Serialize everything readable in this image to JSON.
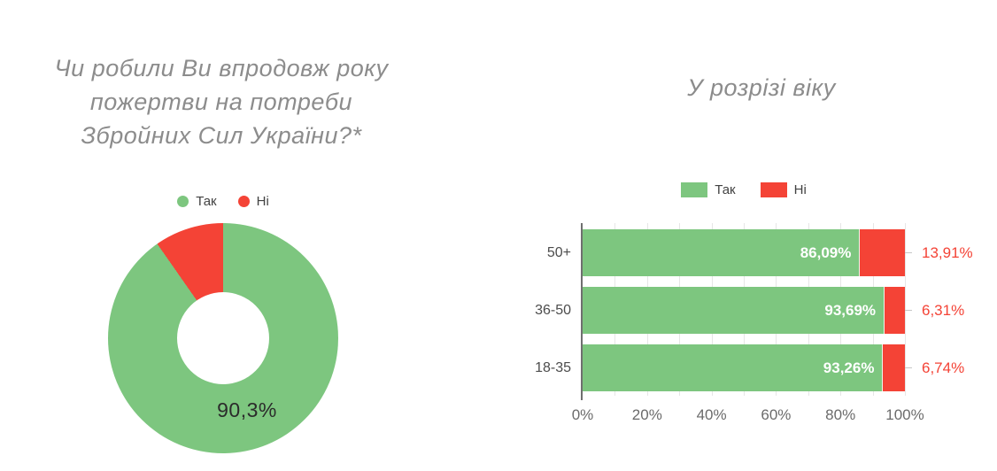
{
  "donut_section": {
    "title_lines": [
      "Чи робили Ви впродовж року",
      "пожертви на потреби",
      "Збройних Сил України?*"
    ]
  },
  "bars_section": {
    "title": "У розрізі віку"
  },
  "chart_data": [
    {
      "type": "pie",
      "subtype": "donut",
      "title": "Чи робили Ви впродовж року пожертви на потреби Збройних Сил України?*",
      "labels": [
        "Так",
        "Ні"
      ],
      "values": [
        90.3,
        9.7
      ],
      "colors": [
        "#7dc67f",
        "#f44336"
      ],
      "center_label": "90,3%",
      "start_angle_deg": 0,
      "direction": "clockwise",
      "legend_position": "top"
    },
    {
      "type": "bar",
      "orientation": "horizontal",
      "stacked": true,
      "title": "У розрізі віку",
      "categories": [
        "50+",
        "36-50",
        "18-35"
      ],
      "series": [
        {
          "name": "Так",
          "color": "#7dc67f",
          "values": [
            86.09,
            93.69,
            93.26
          ],
          "labels": [
            "86,09%",
            "93,69%",
            "93,26%"
          ],
          "label_color": "#ffffff",
          "label_position": "inside-end"
        },
        {
          "name": "Ні",
          "color": "#f44336",
          "values": [
            13.91,
            6.31,
            6.74
          ],
          "labels": [
            "13,91%",
            "6,31%",
            "6,74%"
          ],
          "label_color": "#f44336",
          "label_position": "outside-end"
        }
      ],
      "xlim": [
        0,
        100
      ],
      "x_tick_labels": [
        "0%",
        "20%",
        "40%",
        "60%",
        "80%",
        "100%"
      ],
      "grid": true,
      "gridline_step_pct": 10,
      "legend_position": "top"
    }
  ]
}
